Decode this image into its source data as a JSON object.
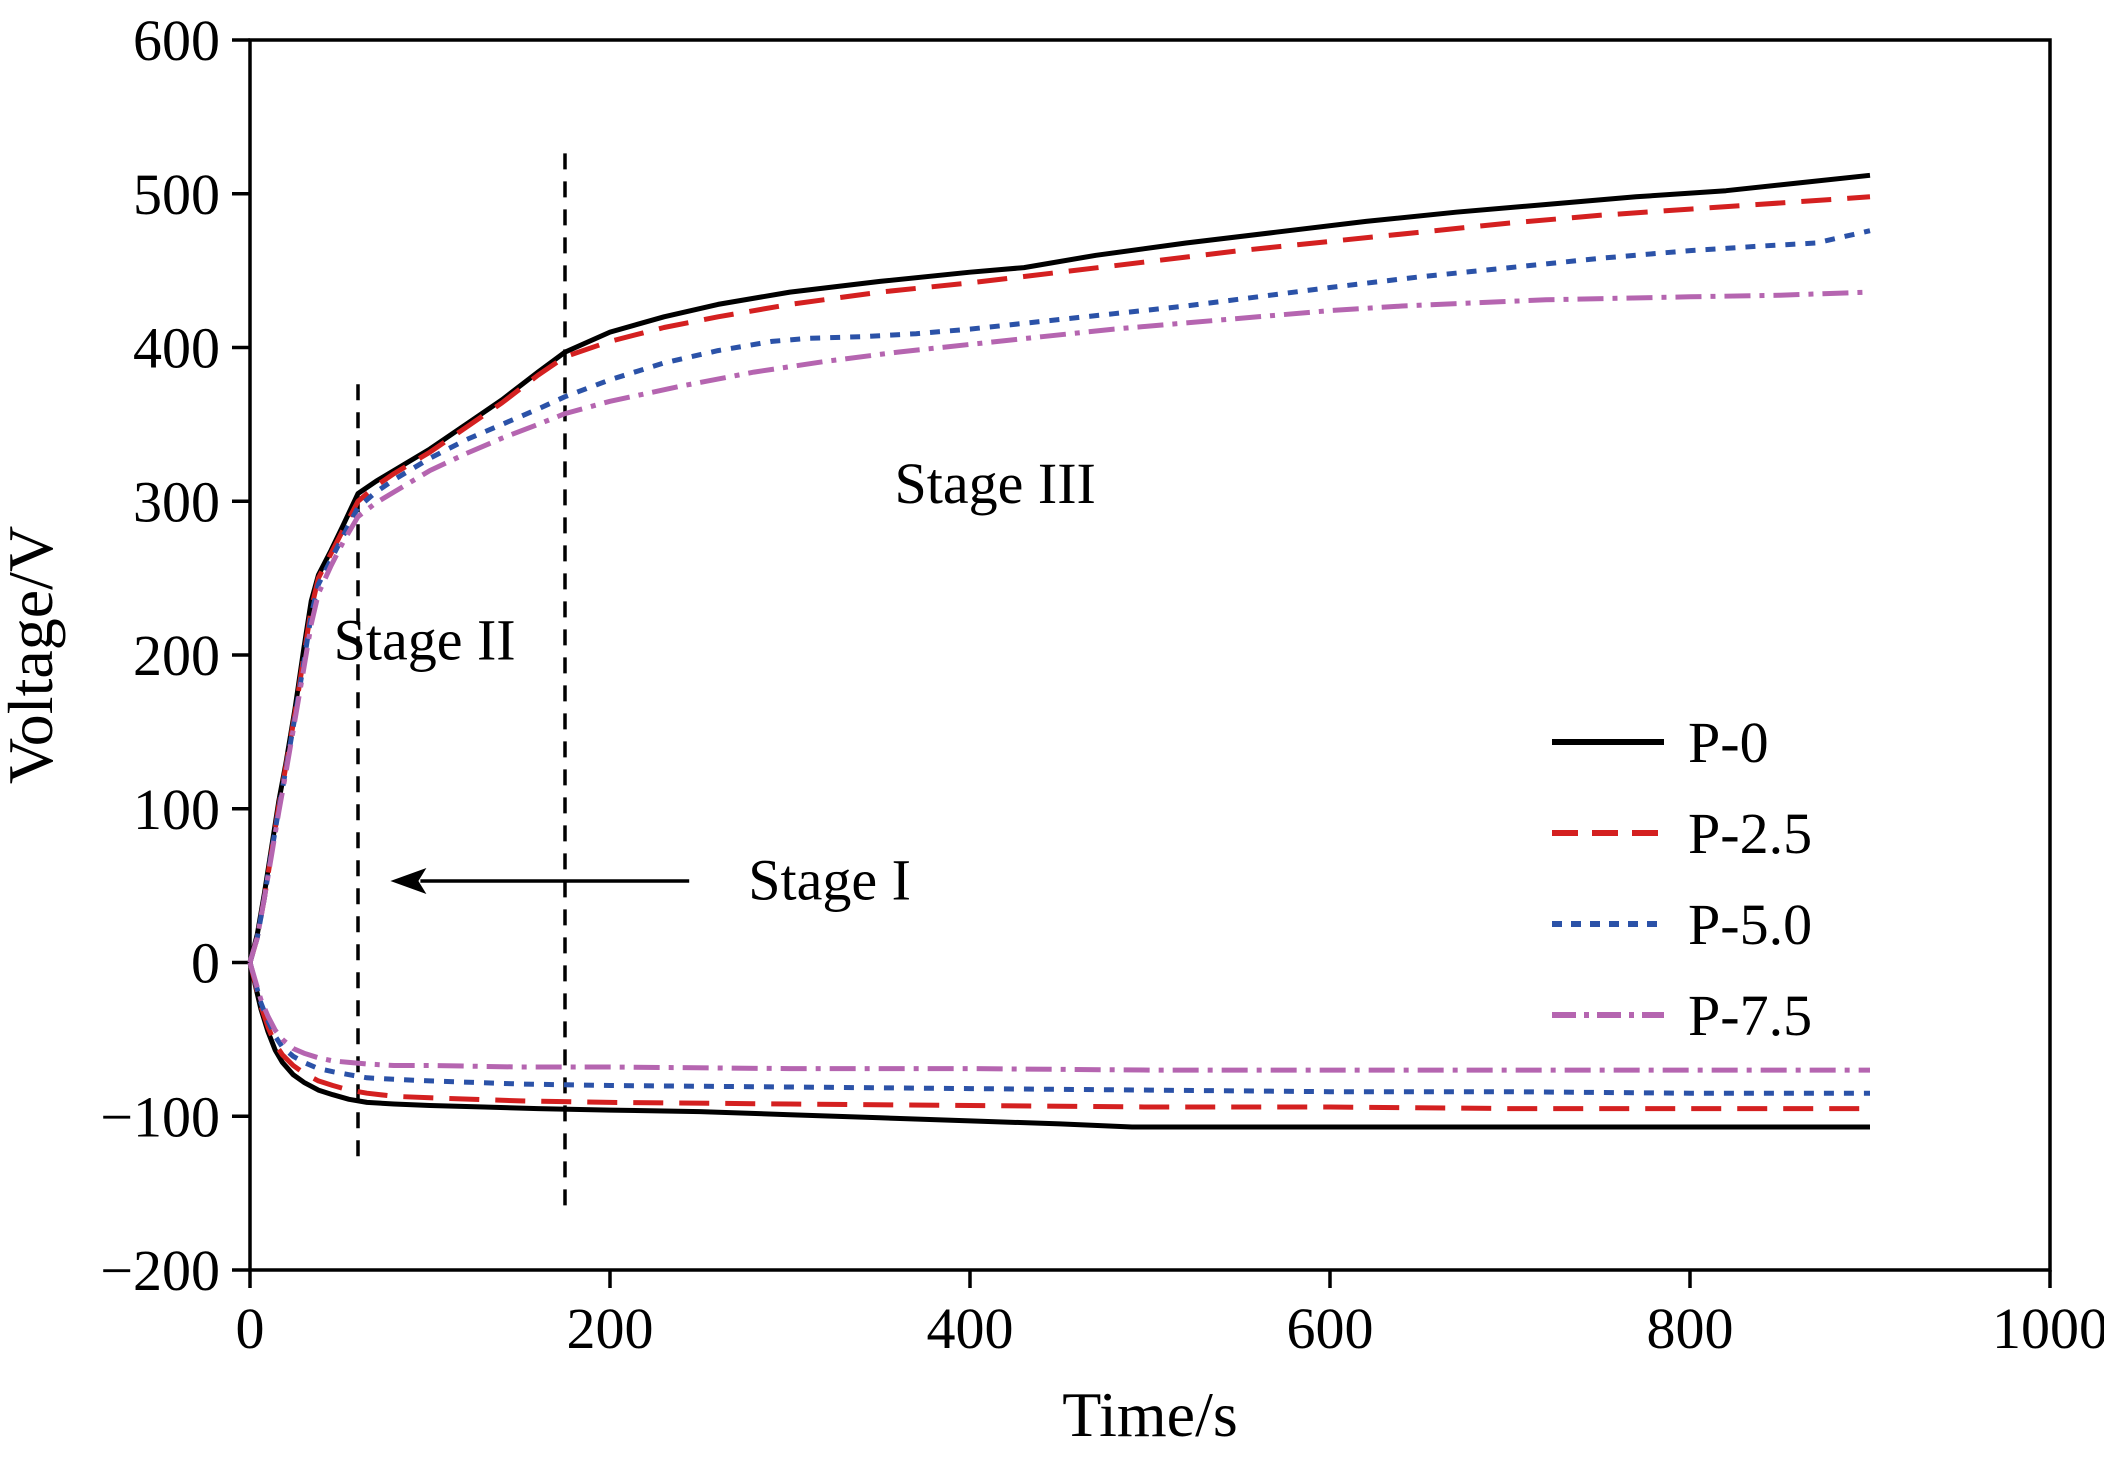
{
  "chart_data": {
    "type": "line",
    "title": "",
    "xlabel": "Time/s",
    "ylabel": "Voltage/V",
    "xlim": [
      0,
      1000
    ],
    "ylim": [
      -200,
      600
    ],
    "xticks": [
      0,
      200,
      400,
      600,
      800,
      1000
    ],
    "yticks": [
      -200,
      -100,
      0,
      100,
      200,
      300,
      400,
      500,
      600
    ],
    "grid": false,
    "legend_position": "center-right",
    "series": [
      {
        "name": "P-0",
        "color": "#000000",
        "dash": "solid",
        "positive": [
          [
            0,
            0
          ],
          [
            4,
            18
          ],
          [
            8,
            45
          ],
          [
            12,
            75
          ],
          [
            16,
            105
          ],
          [
            20,
            130
          ],
          [
            25,
            165
          ],
          [
            30,
            205
          ],
          [
            34,
            235
          ],
          [
            38,
            252
          ],
          [
            45,
            268
          ],
          [
            52,
            285
          ],
          [
            60,
            305
          ],
          [
            70,
            313
          ],
          [
            80,
            320
          ],
          [
            100,
            334
          ],
          [
            120,
            350
          ],
          [
            140,
            366
          ],
          [
            160,
            384
          ],
          [
            175,
            397
          ],
          [
            200,
            410
          ],
          [
            230,
            420
          ],
          [
            260,
            428
          ],
          [
            300,
            436
          ],
          [
            350,
            443
          ],
          [
            400,
            449
          ],
          [
            430,
            452
          ],
          [
            470,
            460
          ],
          [
            520,
            468
          ],
          [
            570,
            475
          ],
          [
            620,
            482
          ],
          [
            670,
            488
          ],
          [
            720,
            493
          ],
          [
            770,
            498
          ],
          [
            820,
            502
          ],
          [
            860,
            507
          ],
          [
            900,
            512
          ]
        ],
        "negative": [
          [
            0,
            0
          ],
          [
            3,
            -15
          ],
          [
            6,
            -30
          ],
          [
            10,
            -45
          ],
          [
            14,
            -57
          ],
          [
            18,
            -65
          ],
          [
            24,
            -73
          ],
          [
            30,
            -78
          ],
          [
            38,
            -83
          ],
          [
            46,
            -86
          ],
          [
            55,
            -89
          ],
          [
            65,
            -91
          ],
          [
            80,
            -92
          ],
          [
            100,
            -93
          ],
          [
            130,
            -94
          ],
          [
            160,
            -95
          ],
          [
            200,
            -96
          ],
          [
            250,
            -97
          ],
          [
            300,
            -99
          ],
          [
            350,
            -101
          ],
          [
            400,
            -103
          ],
          [
            450,
            -105
          ],
          [
            490,
            -107
          ],
          [
            550,
            -107
          ],
          [
            620,
            -107
          ],
          [
            700,
            -107
          ],
          [
            800,
            -107
          ],
          [
            900,
            -107
          ]
        ]
      },
      {
        "name": "P-2.5",
        "color": "#d42020",
        "dash": "long-dash",
        "positive": [
          [
            0,
            0
          ],
          [
            4,
            16
          ],
          [
            8,
            42
          ],
          [
            12,
            72
          ],
          [
            16,
            102
          ],
          [
            20,
            128
          ],
          [
            25,
            162
          ],
          [
            30,
            200
          ],
          [
            34,
            230
          ],
          [
            38,
            250
          ],
          [
            45,
            266
          ],
          [
            52,
            282
          ],
          [
            60,
            300
          ],
          [
            70,
            310
          ],
          [
            80,
            318
          ],
          [
            100,
            332
          ],
          [
            120,
            348
          ],
          [
            140,
            364
          ],
          [
            160,
            382
          ],
          [
            175,
            394
          ],
          [
            200,
            404
          ],
          [
            230,
            413
          ],
          [
            260,
            420
          ],
          [
            300,
            428
          ],
          [
            350,
            436
          ],
          [
            400,
            442
          ],
          [
            450,
            449
          ],
          [
            500,
            456
          ],
          [
            550,
            463
          ],
          [
            600,
            469
          ],
          [
            650,
            475
          ],
          [
            700,
            481
          ],
          [
            750,
            486
          ],
          [
            800,
            490
          ],
          [
            850,
            494
          ],
          [
            900,
            498
          ]
        ],
        "negative": [
          [
            0,
            0
          ],
          [
            3,
            -14
          ],
          [
            6,
            -28
          ],
          [
            10,
            -42
          ],
          [
            14,
            -53
          ],
          [
            18,
            -60
          ],
          [
            24,
            -67
          ],
          [
            30,
            -72
          ],
          [
            38,
            -77
          ],
          [
            46,
            -80
          ],
          [
            55,
            -83
          ],
          [
            65,
            -85
          ],
          [
            80,
            -87
          ],
          [
            100,
            -88
          ],
          [
            150,
            -90
          ],
          [
            200,
            -91
          ],
          [
            300,
            -92
          ],
          [
            400,
            -93
          ],
          [
            500,
            -94
          ],
          [
            600,
            -94
          ],
          [
            700,
            -95
          ],
          [
            800,
            -95
          ],
          [
            900,
            -95
          ]
        ]
      },
      {
        "name": "P-5.0",
        "color": "#2b52a8",
        "dash": "short-dash",
        "positive": [
          [
            0,
            0
          ],
          [
            4,
            16
          ],
          [
            8,
            42
          ],
          [
            12,
            72
          ],
          [
            16,
            100
          ],
          [
            20,
            126
          ],
          [
            25,
            160
          ],
          [
            30,
            196
          ],
          [
            34,
            226
          ],
          [
            38,
            246
          ],
          [
            45,
            262
          ],
          [
            52,
            278
          ],
          [
            60,
            296
          ],
          [
            70,
            306
          ],
          [
            80,
            314
          ],
          [
            100,
            328
          ],
          [
            120,
            340
          ],
          [
            140,
            350
          ],
          [
            160,
            360
          ],
          [
            175,
            368
          ],
          [
            200,
            379
          ],
          [
            230,
            390
          ],
          [
            260,
            398
          ],
          [
            290,
            404
          ],
          [
            310,
            406
          ],
          [
            340,
            407
          ],
          [
            370,
            409
          ],
          [
            400,
            412
          ],
          [
            440,
            417
          ],
          [
            480,
            422
          ],
          [
            520,
            427
          ],
          [
            560,
            433
          ],
          [
            600,
            439
          ],
          [
            650,
            446
          ],
          [
            700,
            452
          ],
          [
            750,
            458
          ],
          [
            800,
            463
          ],
          [
            840,
            466
          ],
          [
            870,
            468
          ],
          [
            900,
            476
          ]
        ],
        "negative": [
          [
            0,
            0
          ],
          [
            3,
            -13
          ],
          [
            6,
            -26
          ],
          [
            10,
            -38
          ],
          [
            14,
            -48
          ],
          [
            18,
            -55
          ],
          [
            24,
            -61
          ],
          [
            30,
            -65
          ],
          [
            38,
            -69
          ],
          [
            46,
            -71
          ],
          [
            55,
            -73
          ],
          [
            65,
            -75
          ],
          [
            80,
            -76
          ],
          [
            100,
            -77
          ],
          [
            150,
            -79
          ],
          [
            200,
            -80
          ],
          [
            300,
            -81
          ],
          [
            400,
            -82
          ],
          [
            500,
            -83
          ],
          [
            600,
            -84
          ],
          [
            700,
            -84
          ],
          [
            800,
            -85
          ],
          [
            900,
            -85
          ]
        ]
      },
      {
        "name": "P-7.5",
        "color": "#b565b0",
        "dash": "dash-dot",
        "positive": [
          [
            0,
            0
          ],
          [
            4,
            16
          ],
          [
            8,
            42
          ],
          [
            12,
            70
          ],
          [
            16,
            98
          ],
          [
            20,
            124
          ],
          [
            25,
            158
          ],
          [
            30,
            192
          ],
          [
            34,
            220
          ],
          [
            38,
            240
          ],
          [
            45,
            258
          ],
          [
            52,
            274
          ],
          [
            60,
            290
          ],
          [
            70,
            299
          ],
          [
            80,
            306
          ],
          [
            100,
            320
          ],
          [
            120,
            331
          ],
          [
            140,
            341
          ],
          [
            160,
            350
          ],
          [
            175,
            357
          ],
          [
            200,
            365
          ],
          [
            240,
            375
          ],
          [
            280,
            384
          ],
          [
            320,
            391
          ],
          [
            360,
            397
          ],
          [
            400,
            402
          ],
          [
            440,
            407
          ],
          [
            480,
            412
          ],
          [
            520,
            416
          ],
          [
            560,
            420
          ],
          [
            600,
            424
          ],
          [
            640,
            427
          ],
          [
            680,
            429
          ],
          [
            720,
            431
          ],
          [
            760,
            432
          ],
          [
            800,
            433
          ],
          [
            850,
            434
          ],
          [
            900,
            436
          ]
        ],
        "negative": [
          [
            0,
            0
          ],
          [
            3,
            -12
          ],
          [
            6,
            -24
          ],
          [
            10,
            -35
          ],
          [
            14,
            -44
          ],
          [
            18,
            -50
          ],
          [
            24,
            -56
          ],
          [
            30,
            -59
          ],
          [
            38,
            -62
          ],
          [
            46,
            -64
          ],
          [
            55,
            -65
          ],
          [
            65,
            -66
          ],
          [
            80,
            -67
          ],
          [
            100,
            -67
          ],
          [
            150,
            -68
          ],
          [
            200,
            -68
          ],
          [
            300,
            -69
          ],
          [
            400,
            -69
          ],
          [
            500,
            -70
          ],
          [
            600,
            -70
          ],
          [
            700,
            -70
          ],
          [
            800,
            -70
          ],
          [
            900,
            -70
          ]
        ]
      }
    ],
    "stage_boundaries": [
      {
        "x": 60,
        "v_from": -126,
        "v_to": 378
      },
      {
        "x": 175,
        "v_from": -158,
        "v_to": 531
      }
    ],
    "annotations": [
      {
        "id": "stage-1",
        "text": "Stage I",
        "x": 322,
        "y": 54,
        "arrow": {
          "from_x": 244,
          "to_x": 78,
          "y": 53
        }
      },
      {
        "id": "stage-2",
        "text": "Stage II",
        "x": 97,
        "y": 210
      },
      {
        "id": "stage-3",
        "text": "Stage III",
        "x": 414,
        "y": 312
      }
    ],
    "legend": {
      "entries": [
        "P-0",
        "P-2.5",
        "P-5.0",
        "P-7.5"
      ]
    }
  }
}
